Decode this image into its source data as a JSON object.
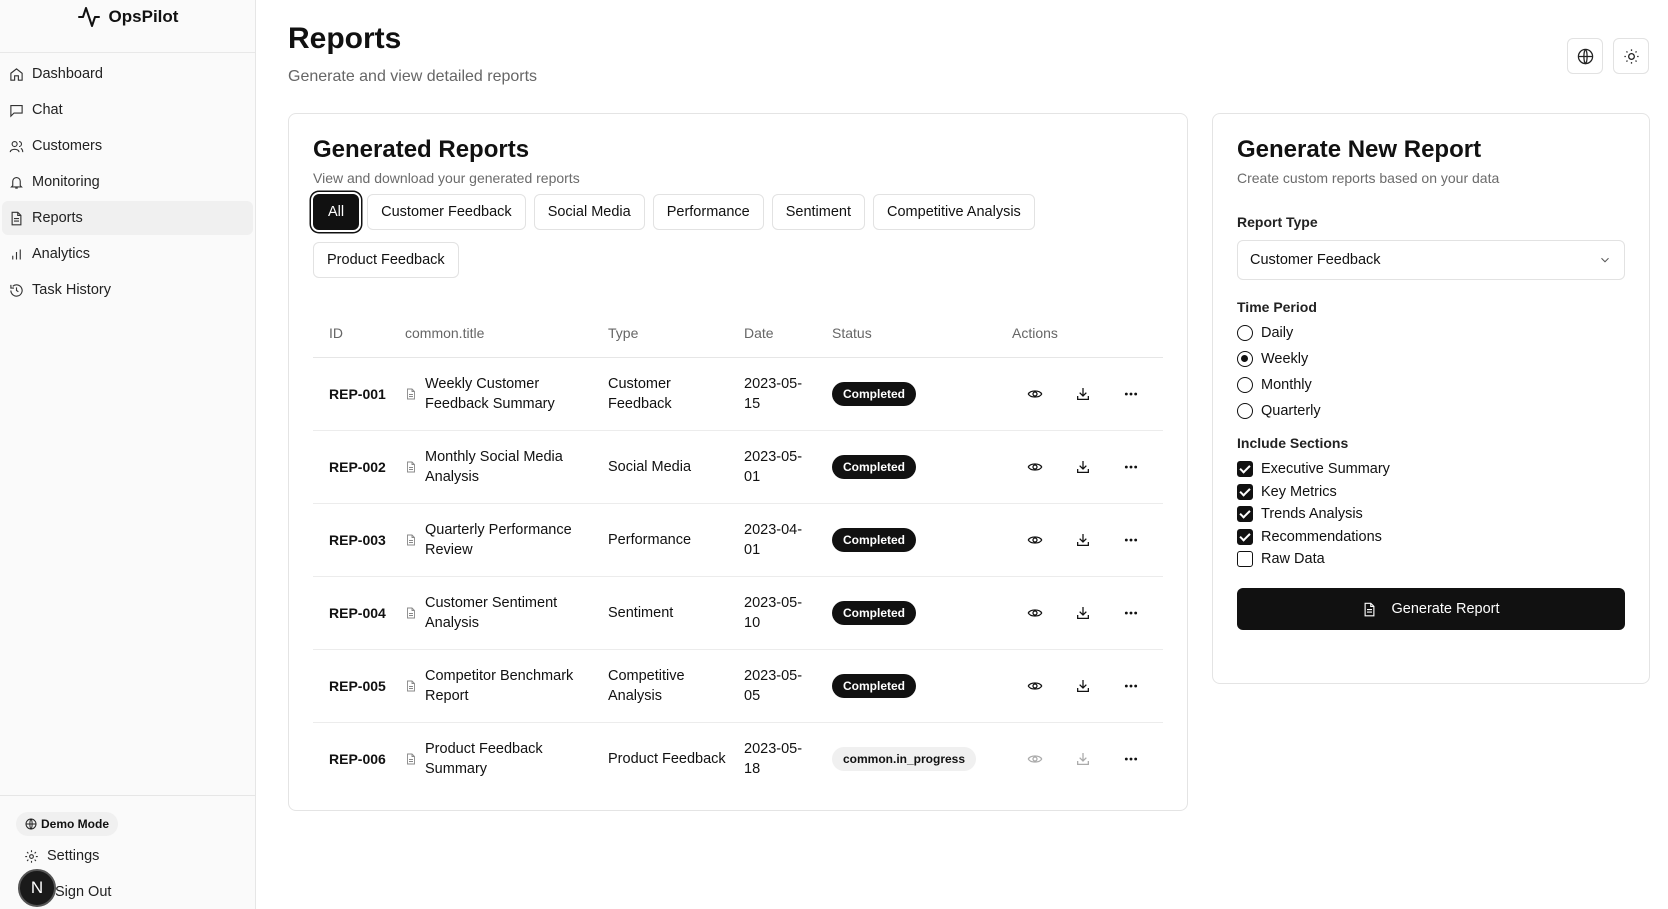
{
  "app": {
    "name": "OpsPilot"
  },
  "sidebar": {
    "items": [
      {
        "label": "Dashboard",
        "icon": "home-icon"
      },
      {
        "label": "Chat",
        "icon": "message-icon"
      },
      {
        "label": "Customers",
        "icon": "users-icon"
      },
      {
        "label": "Monitoring",
        "icon": "bell-icon"
      },
      {
        "label": "Reports",
        "icon": "file-text-icon",
        "active": true
      },
      {
        "label": "Analytics",
        "icon": "bar-chart-icon"
      },
      {
        "label": "Task History",
        "icon": "history-icon"
      }
    ],
    "demo_badge": "Demo Mode",
    "settings_label": "Settings",
    "signout_label": "Sign Out",
    "avatar_initial": "N"
  },
  "header": {
    "title": "Reports",
    "subtitle": "Generate and view detailed reports"
  },
  "reports": {
    "title": "Generated Reports",
    "subtitle": "View and download your generated reports",
    "filters": [
      "All",
      "Customer Feedback",
      "Social Media",
      "Performance",
      "Sentiment",
      "Competitive Analysis",
      "Product Feedback"
    ],
    "active_filter": "All",
    "columns": [
      "ID",
      "common.title",
      "Type",
      "Date",
      "Status",
      "Actions"
    ],
    "rows": [
      {
        "id": "REP-001",
        "title": "Weekly Customer Feedback Summary",
        "type": "Customer Feedback",
        "date": "2023-05-15",
        "status": "Completed"
      },
      {
        "id": "REP-002",
        "title": "Monthly Social Media Analysis",
        "type": "Social Media",
        "date": "2023-05-01",
        "status": "Completed"
      },
      {
        "id": "REP-003",
        "title": "Quarterly Performance Review",
        "type": "Performance",
        "date": "2023-04-01",
        "status": "Completed"
      },
      {
        "id": "REP-004",
        "title": "Customer Sentiment Analysis",
        "type": "Sentiment",
        "date": "2023-05-10",
        "status": "Completed"
      },
      {
        "id": "REP-005",
        "title": "Competitor Benchmark Report",
        "type": "Competitive Analysis",
        "date": "2023-05-05",
        "status": "Completed"
      },
      {
        "id": "REP-006",
        "title": "Product Feedback Summary",
        "type": "Product Feedback",
        "date": "2023-05-18",
        "status": "common.in_progress"
      }
    ]
  },
  "generate": {
    "title": "Generate New Report",
    "subtitle": "Create custom reports based on your data",
    "report_type_label": "Report Type",
    "report_type_value": "Customer Feedback",
    "time_period_label": "Time Period",
    "time_periods": [
      {
        "label": "Daily",
        "selected": false
      },
      {
        "label": "Weekly",
        "selected": true
      },
      {
        "label": "Monthly",
        "selected": false
      },
      {
        "label": "Quarterly",
        "selected": false
      }
    ],
    "sections_label": "Include Sections",
    "sections": [
      {
        "label": "Executive Summary",
        "checked": true
      },
      {
        "label": "Key Metrics",
        "checked": true
      },
      {
        "label": "Trends Analysis",
        "checked": true
      },
      {
        "label": "Recommendations",
        "checked": true
      },
      {
        "label": "Raw Data",
        "checked": false
      }
    ],
    "button_label": "Generate Report"
  }
}
